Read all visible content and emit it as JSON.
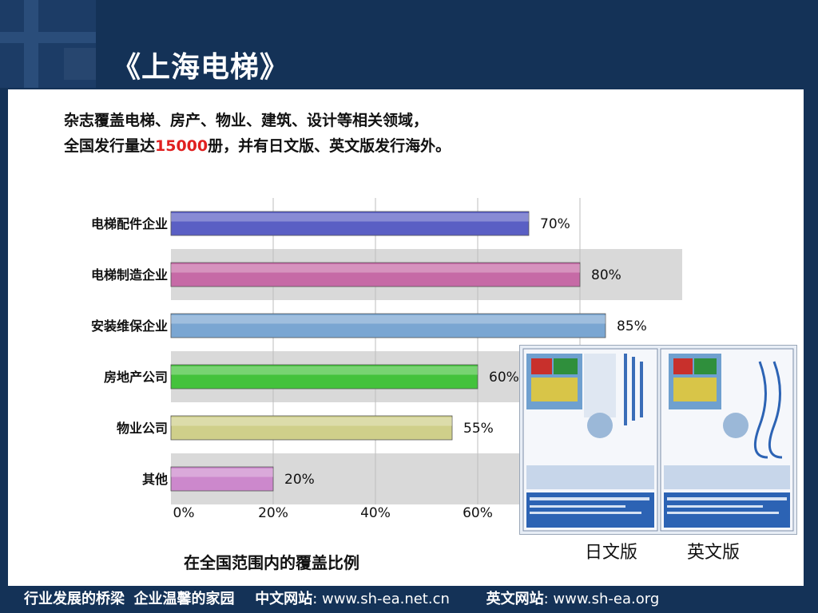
{
  "slide": {
    "title": "《上海电梯》",
    "intro_line1": "杂志覆盖电梯、房产、物业、建筑、设计等相关领域，",
    "intro_line2_pre": "全国发行量达",
    "intro_line2_hl": "15000",
    "intro_line2_post": "册，并有日文版、英文版发行海外。",
    "chart_caption": "在全国范围内的覆盖比例"
  },
  "chart_data": {
    "type": "bar",
    "orientation": "horizontal",
    "categories": [
      "电梯配件企业",
      "电梯制造企业",
      "安装维保企业",
      "房地产公司",
      "物业公司",
      "其他"
    ],
    "values": [
      70,
      80,
      85,
      60,
      55,
      20
    ],
    "data_labels": [
      "70%",
      "80%",
      "85%",
      "60%",
      "55%",
      "20%"
    ],
    "bar_colors": [
      "#5a5fc4",
      "#c66aa6",
      "#7aa6d2",
      "#44c23c",
      "#cfcf8a",
      "#cc88cc"
    ],
    "xticks": [
      "0%",
      "20%",
      "40%",
      "60%"
    ],
    "xlim": [
      0,
      100
    ],
    "grid": true,
    "title": "",
    "xlabel": "",
    "ylabel": ""
  },
  "editions": {
    "jp_label": "日文版",
    "en_label": "英文版"
  },
  "footer": {
    "slogan1": "行业发展的桥梁",
    "slogan2": "企业温馨的家园",
    "cn_site_label": "中文网站",
    "cn_site_url": ": www.sh-ea.net.cn",
    "en_site_label": "英文网站",
    "en_site_url": ": www.sh-ea.org"
  },
  "colors": {
    "background": "#143257",
    "highlight": "#e02020"
  }
}
